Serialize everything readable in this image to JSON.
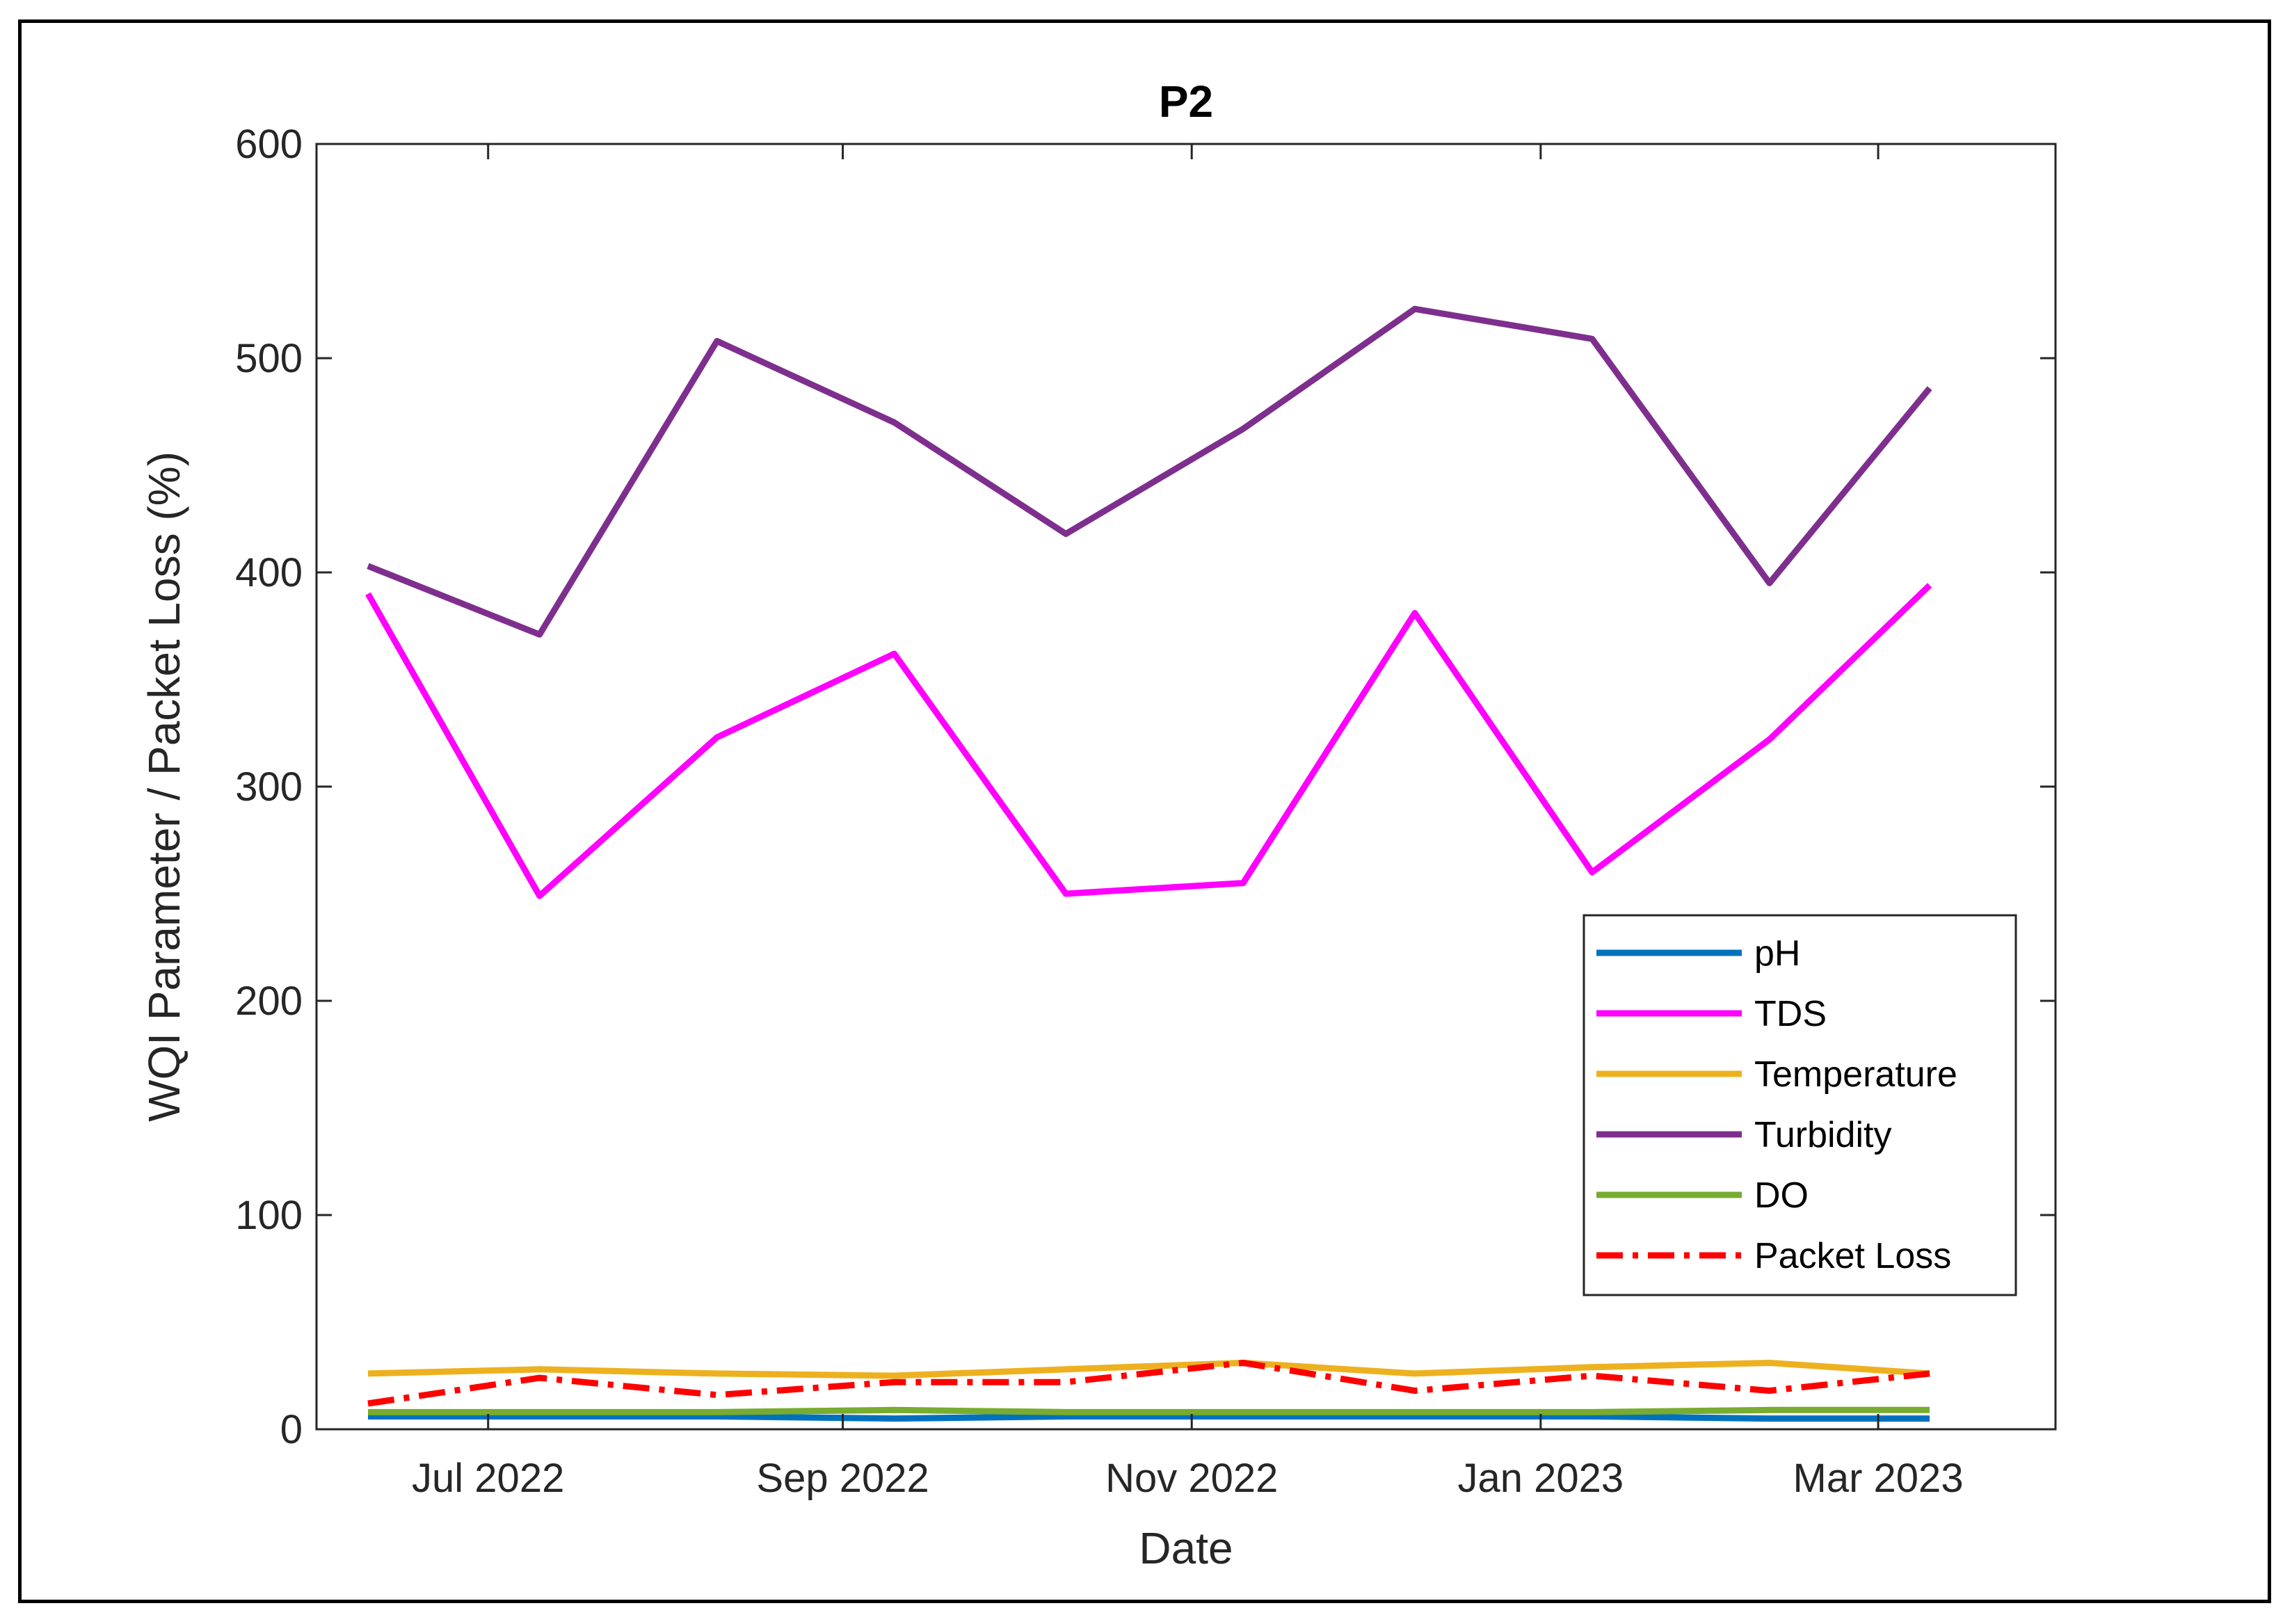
{
  "chart_data": {
    "type": "line",
    "title": "P2",
    "xlabel": "Date",
    "ylabel": "WQI Parameter / Packet Loss (%)",
    "ylim": [
      0,
      600
    ],
    "yticks": [
      0,
      100,
      200,
      300,
      400,
      500,
      600
    ],
    "xlim": [
      "2022-06-01",
      "2023-04-01"
    ],
    "xticks": [
      {
        "date": "2022-07-01",
        "label": "Jul 2022"
      },
      {
        "date": "2022-09-01",
        "label": "Sep 2022"
      },
      {
        "date": "2022-11-01",
        "label": "Nov 2022"
      },
      {
        "date": "2023-01-01",
        "label": "Jan 2023"
      },
      {
        "date": "2023-03-01",
        "label": "Mar 2023"
      }
    ],
    "grid": false,
    "legend_position": "right",
    "x": [
      "2022-06-10",
      "2022-07-10",
      "2022-08-10",
      "2022-09-10",
      "2022-10-10",
      "2022-11-10",
      "2022-12-10",
      "2023-01-10",
      "2023-02-10",
      "2023-03-10"
    ],
    "series": [
      {
        "name": "pH",
        "color": "#0072BD",
        "dash": "solid",
        "values": [
          6,
          6,
          6,
          5,
          6,
          6,
          6,
          6,
          5,
          5
        ]
      },
      {
        "name": "TDS",
        "color": "#FF00FF",
        "dash": "solid",
        "values": [
          390,
          249,
          323,
          362,
          250,
          255,
          381,
          260,
          322,
          394
        ]
      },
      {
        "name": "Temperature",
        "color": "#EDB120",
        "dash": "solid",
        "values": [
          26,
          28,
          26,
          25,
          28,
          31,
          26,
          29,
          31,
          26
        ]
      },
      {
        "name": "Turbidity",
        "color": "#7E2F8E",
        "dash": "solid",
        "values": [
          403,
          371,
          508,
          470,
          418,
          467,
          523,
          509,
          395,
          486
        ]
      },
      {
        "name": "DO",
        "color": "#77AC30",
        "dash": "solid",
        "values": [
          8,
          8,
          8,
          9,
          8,
          8,
          8,
          8,
          9,
          9
        ]
      },
      {
        "name": "Packet Loss",
        "color": "#FF0000",
        "dash": "dashdot",
        "values": [
          12,
          24,
          16,
          22,
          22,
          31,
          18,
          25,
          18,
          26
        ]
      }
    ]
  }
}
